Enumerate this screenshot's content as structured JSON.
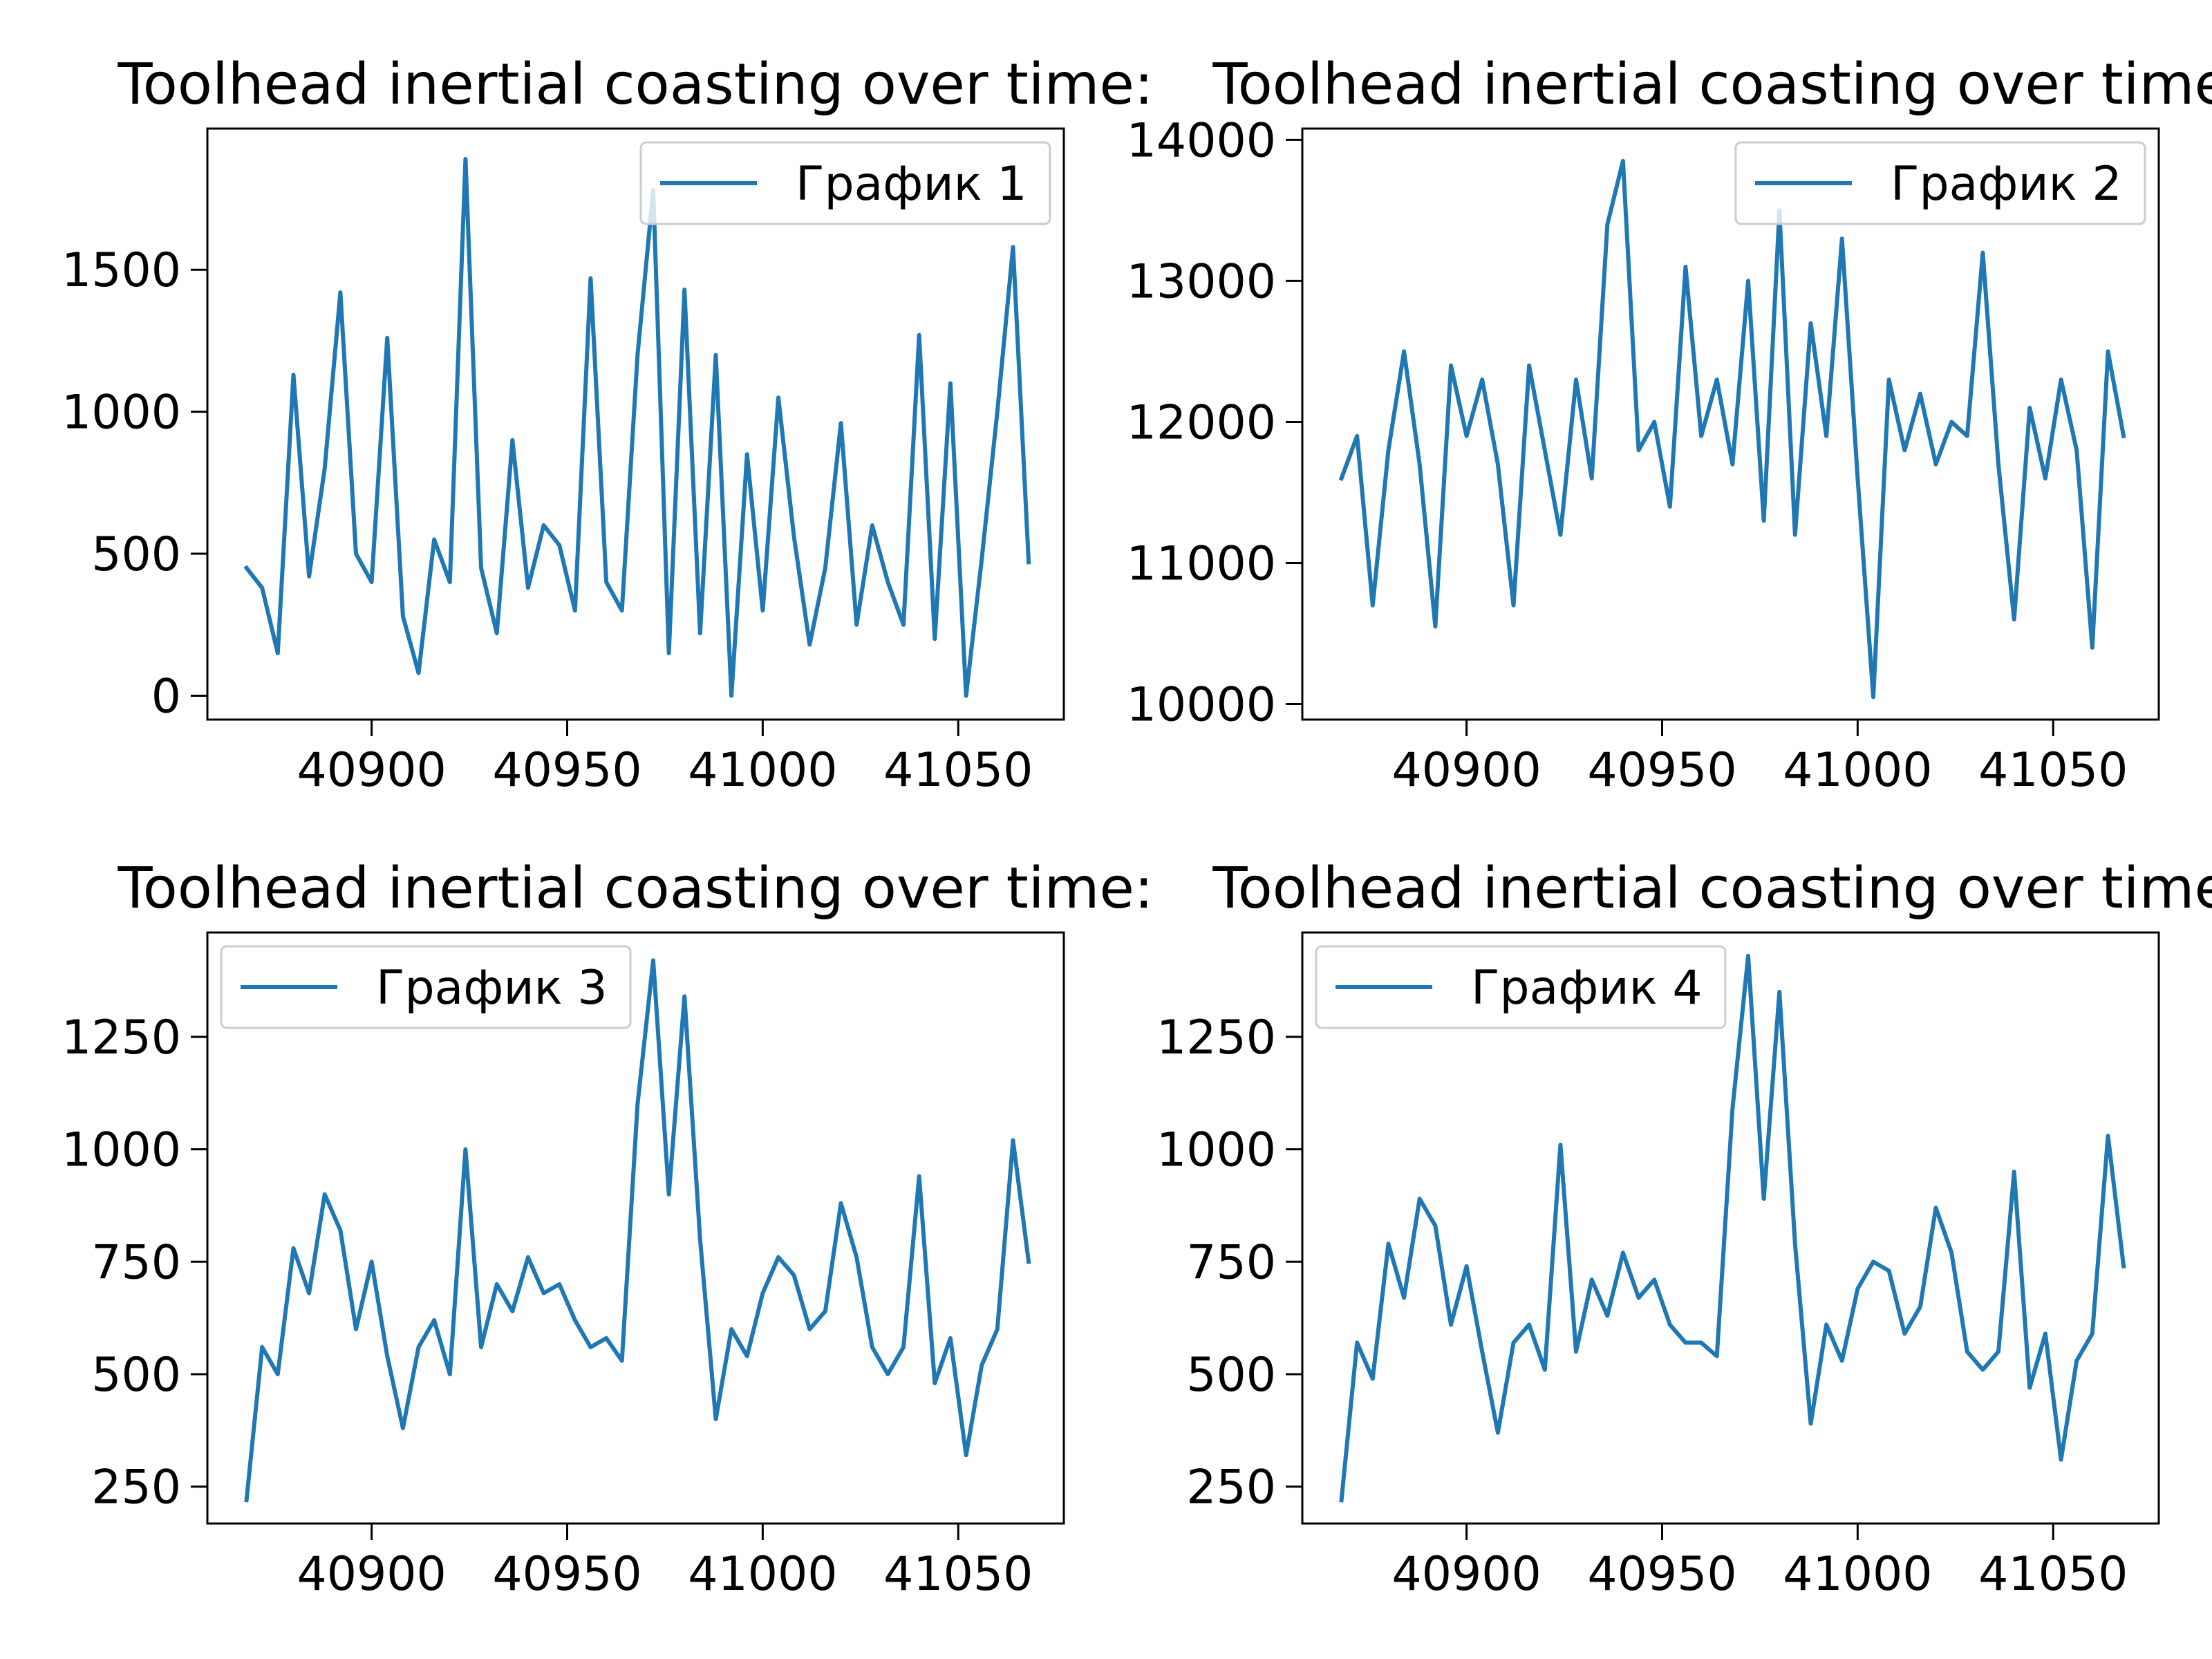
{
  "chart_data": [
    {
      "type": "line",
      "title": "Toolhead inertial coasting over time:",
      "legend": "upper right",
      "x": [
        40868,
        40872,
        40876,
        40880,
        40884,
        40888,
        40892,
        40896,
        40900,
        40904,
        40908,
        40912,
        40916,
        40920,
        40924,
        40928,
        40932,
        40936,
        40940,
        40944,
        40948,
        40952,
        40956,
        40960,
        40964,
        40968,
        40972,
        40976,
        40980,
        40984,
        40988,
        40992,
        40996,
        41000,
        41004,
        41008,
        41012,
        41016,
        41020,
        41024,
        41028,
        41032,
        41036,
        41040,
        41044,
        41048,
        41052,
        41056,
        41060,
        41064,
        41068
      ],
      "series": [
        {
          "name": "График 1",
          "color": "#1f77b4",
          "values": [
            450,
            380,
            150,
            1130,
            420,
            800,
            1420,
            500,
            400,
            1260,
            280,
            80,
            550,
            400,
            1890,
            450,
            220,
            900,
            380,
            600,
            530,
            300,
            1470,
            400,
            300,
            1200,
            1780,
            150,
            1430,
            220,
            1200,
            0,
            850,
            300,
            1050,
            560,
            180,
            450,
            960,
            250,
            600,
            400,
            250,
            1270,
            200,
            1100,
            0,
            480,
            1000,
            1580,
            470
          ]
        }
      ],
      "xlim": [
        40858,
        41077
      ],
      "xticks": [
        40900,
        40950,
        41000,
        41050
      ],
      "ylim": [
        -84,
        1997
      ],
      "yticks": [
        0,
        500,
        1000,
        1500
      ]
    },
    {
      "type": "line",
      "title": "Toolhead inertial coasting over time:",
      "legend": "upper right",
      "x": [
        40868,
        40872,
        40876,
        40880,
        40884,
        40888,
        40892,
        40896,
        40900,
        40904,
        40908,
        40912,
        40916,
        40920,
        40924,
        40928,
        40932,
        40936,
        40940,
        40944,
        40948,
        40952,
        40956,
        40960,
        40964,
        40968,
        40972,
        40976,
        40980,
        40984,
        40988,
        40992,
        40996,
        41000,
        41004,
        41008,
        41012,
        41016,
        41020,
        41024,
        41028,
        41032,
        41036,
        41040,
        41044,
        41048,
        41052,
        41056,
        41060,
        41064,
        41068
      ],
      "series": [
        {
          "name": "График 2",
          "color": "#1f77b4",
          "values": [
            11600,
            11900,
            10700,
            11800,
            12500,
            11700,
            10550,
            12400,
            11900,
            12300,
            11700,
            10700,
            12400,
            11800,
            11200,
            12300,
            11600,
            13400,
            13850,
            11800,
            12000,
            11400,
            13100,
            11900,
            12300,
            11700,
            13000,
            11300,
            13500,
            11200,
            12700,
            11900,
            13300,
            11600,
            10050,
            12300,
            11800,
            12200,
            11700,
            12000,
            11900,
            13200,
            11700,
            10600,
            12100,
            11600,
            12300,
            11800,
            10400,
            12500,
            11900
          ]
        }
      ],
      "xlim": [
        40858,
        41077
      ],
      "xticks": [
        40900,
        40950,
        41000,
        41050
      ],
      "ylim": [
        9890,
        14080
      ],
      "yticks": [
        10000,
        11000,
        12000,
        13000,
        14000
      ]
    },
    {
      "type": "line",
      "title": "Toolhead inertial coasting over time:",
      "legend": "upper left",
      "x": [
        40868,
        40872,
        40876,
        40880,
        40884,
        40888,
        40892,
        40896,
        40900,
        40904,
        40908,
        40912,
        40916,
        40920,
        40924,
        40928,
        40932,
        40936,
        40940,
        40944,
        40948,
        40952,
        40956,
        40960,
        40964,
        40968,
        40972,
        40976,
        40980,
        40984,
        40988,
        40992,
        40996,
        41000,
        41004,
        41008,
        41012,
        41016,
        41020,
        41024,
        41028,
        41032,
        41036,
        41040,
        41044,
        41048,
        41052,
        41056,
        41060,
        41064,
        41068
      ],
      "series": [
        {
          "name": "График 3",
          "color": "#1f77b4",
          "values": [
            220,
            560,
            500,
            780,
            680,
            900,
            820,
            600,
            750,
            540,
            380,
            560,
            620,
            500,
            1000,
            560,
            700,
            640,
            760,
            680,
            700,
            620,
            560,
            580,
            530,
            1100,
            1420,
            900,
            1340,
            800,
            400,
            600,
            540,
            680,
            760,
            720,
            600,
            640,
            880,
            760,
            560,
            500,
            560,
            940,
            480,
            580,
            320,
            520,
            600,
            1020,
            750
          ]
        }
      ],
      "xlim": [
        40858,
        41077
      ],
      "xticks": [
        40900,
        40950,
        41000,
        41050
      ],
      "ylim": [
        168,
        1482
      ],
      "yticks": [
        250,
        500,
        750,
        1000,
        1250
      ]
    },
    {
      "type": "line",
      "title": "Toolhead inertial coasting over time:",
      "legend": "upper left",
      "x": [
        40868,
        40872,
        40876,
        40880,
        40884,
        40888,
        40892,
        40896,
        40900,
        40904,
        40908,
        40912,
        40916,
        40920,
        40924,
        40928,
        40932,
        40936,
        40940,
        40944,
        40948,
        40952,
        40956,
        40960,
        40964,
        40968,
        40972,
        40976,
        40980,
        40984,
        40988,
        40992,
        40996,
        41000,
        41004,
        41008,
        41012,
        41016,
        41020,
        41024,
        41028,
        41032,
        41036,
        41040,
        41044,
        41048,
        41052,
        41056,
        41060,
        41064,
        41068
      ],
      "series": [
        {
          "name": "График 4",
          "color": "#1f77b4",
          "values": [
            220,
            570,
            490,
            790,
            670,
            890,
            830,
            610,
            740,
            550,
            370,
            570,
            610,
            510,
            1010,
            550,
            710,
            630,
            770,
            670,
            710,
            610,
            570,
            570,
            540,
            1090,
            1430,
            890,
            1350,
            790,
            390,
            610,
            530,
            690,
            750,
            730,
            590,
            650,
            870,
            770,
            550,
            510,
            550,
            950,
            470,
            590,
            310,
            530,
            590,
            1030,
            740
          ]
        }
      ],
      "xlim": [
        40858,
        41077
      ],
      "xticks": [
        40900,
        40950,
        41000,
        41050
      ],
      "ylim": [
        168,
        1482
      ],
      "yticks": [
        250,
        500,
        750,
        1000,
        1250
      ]
    }
  ]
}
